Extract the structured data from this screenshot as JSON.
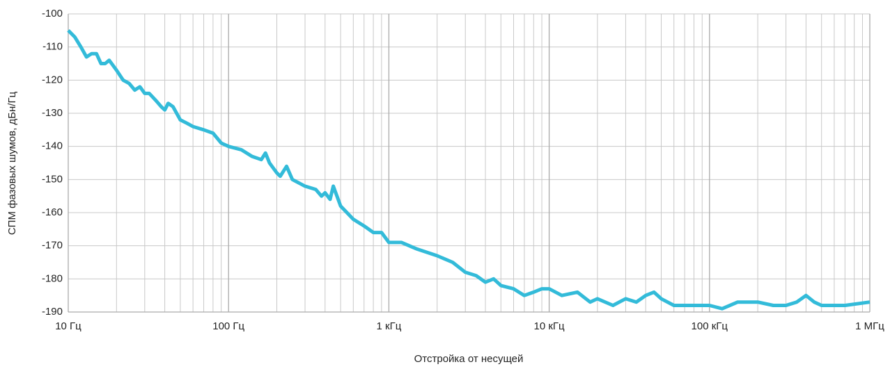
{
  "chart_data": {
    "type": "line",
    "x_label": "Отстройка от несущей",
    "y_label": "СПМ фазовых шумов, дБн/Гц",
    "x_scale": "log",
    "grid": true,
    "color": "#33bbd9",
    "xlim": [
      10,
      1000000
    ],
    "ylim": [
      -190,
      -100
    ],
    "xticks": [
      {
        "value": 10,
        "label": "10 Гц"
      },
      {
        "value": 100,
        "label": "100 Гц"
      },
      {
        "value": 1000,
        "label": "1 кГц"
      },
      {
        "value": 10000,
        "label": "10 кГц"
      },
      {
        "value": 100000,
        "label": "100 кГц"
      },
      {
        "value": 1000000,
        "label": "1 МГц"
      }
    ],
    "x_minor_grid": [
      20,
      30,
      40,
      50,
      60,
      70,
      80,
      90,
      200,
      300,
      400,
      500,
      600,
      700,
      800,
      900,
      2000,
      3000,
      4000,
      5000,
      6000,
      7000,
      8000,
      9000,
      20000,
      30000,
      40000,
      50000,
      60000,
      70000,
      80000,
      90000,
      200000,
      300000,
      400000,
      500000,
      600000,
      700000,
      800000,
      900000
    ],
    "yticks": [
      -190,
      -180,
      -170,
      -160,
      -150,
      -140,
      -130,
      -120,
      -110,
      -100
    ],
    "x": [
      10,
      11,
      12,
      13,
      14,
      15,
      16,
      17,
      18,
      20,
      22,
      24,
      26,
      28,
      30,
      32,
      35,
      38,
      40,
      42,
      45,
      50,
      55,
      60,
      70,
      80,
      90,
      100,
      120,
      140,
      160,
      170,
      180,
      200,
      210,
      230,
      250,
      300,
      350,
      380,
      400,
      430,
      450,
      500,
      600,
      700,
      800,
      900,
      1000,
      1200,
      1500,
      2000,
      2500,
      3000,
      3500,
      4000,
      4500,
      5000,
      6000,
      7000,
      8000,
      9000,
      10000,
      12000,
      15000,
      18000,
      20000,
      25000,
      30000,
      35000,
      40000,
      45000,
      50000,
      60000,
      70000,
      80000,
      100000,
      120000,
      150000,
      200000,
      250000,
      300000,
      350000,
      400000,
      450000,
      500000,
      700000,
      1000000
    ],
    "series": [
      {
        "name": null,
        "values": [
          -105,
          -107,
          -110,
          -113,
          -112,
          -112,
          -115,
          -115,
          -114,
          -117,
          -120,
          -121,
          -123,
          -122,
          -124,
          -124,
          -126,
          -128,
          -129,
          -127,
          -128,
          -132,
          -133,
          -134,
          -135,
          -136,
          -139,
          -140,
          -141,
          -143,
          -144,
          -142,
          -145,
          -148,
          -149,
          -146,
          -150,
          -152,
          -153,
          -155,
          -154,
          -156,
          -152,
          -158,
          -162,
          -164,
          -166,
          -166,
          -169,
          -169,
          -171,
          -173,
          -175,
          -178,
          -179,
          -181,
          -180,
          -182,
          -183,
          -185,
          -184,
          -183,
          -183,
          -185,
          -184,
          -187,
          -186,
          -188,
          -186,
          -187,
          -185,
          -184,
          -186,
          -188,
          -188,
          -188,
          -188,
          -189,
          -187,
          -187,
          -188,
          -188,
          -187,
          -185,
          -187,
          -188,
          -188,
          -187
        ]
      }
    ]
  }
}
